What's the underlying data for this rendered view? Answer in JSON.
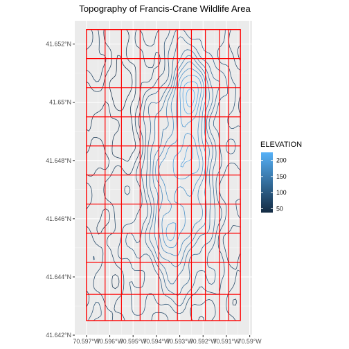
{
  "chart_data": {
    "type": "contour",
    "title": "Topography of Francis-Crane Wildlife Area",
    "xlabel": "",
    "ylabel": "",
    "x_ticks": [
      "70.597°W",
      "70.596°W",
      "70.595°W",
      "70.594°W",
      "70.593°W",
      "70.592°W",
      "70.591°W",
      "70.59°W"
    ],
    "x_tick_values": [
      -70.597,
      -70.596,
      -70.595,
      -70.594,
      -70.593,
      -70.592,
      -70.591,
      -70.59
    ],
    "y_ticks": [
      "41.652°N",
      "41.65°N",
      "41.648°N",
      "41.646°N",
      "41.644°N",
      "41.642°N"
    ],
    "y_tick_values": [
      41.652,
      41.65,
      41.648,
      41.646,
      41.644,
      41.642
    ],
    "xlim": [
      -70.5975,
      -70.5899
    ],
    "ylim": [
      41.642,
      41.6528
    ],
    "grid_extent": {
      "xmin": -70.597,
      "xmax": -70.5904,
      "ymin": 41.6425,
      "ymax": 41.6525
    },
    "red_grid_columns": [
      -70.597,
      -70.5962,
      -70.5955,
      -70.5947,
      -70.5939,
      -70.5931,
      -70.5925,
      -70.5919,
      -70.5913,
      -70.5909,
      -70.5904
    ],
    "red_grid_rows": [
      41.6425,
      41.6434,
      41.6445,
      41.6455,
      41.6465,
      41.6475,
      41.6485,
      41.6495,
      41.6505,
      41.6515,
      41.6525
    ],
    "legend": {
      "title": "ELEVATION",
      "labels": [
        "200",
        "150",
        "100",
        "50"
      ],
      "label_values": [
        200,
        150,
        100,
        50
      ],
      "range": [
        38,
        225
      ],
      "position": "right"
    },
    "colors": {
      "low": "#132b43",
      "high": "#56b1f7",
      "grid": "#ff0000",
      "panel": "#ebebeb"
    },
    "contour_levels": [
      40,
      55,
      70,
      85,
      100,
      115,
      130,
      145,
      160,
      175,
      190,
      205,
      220
    ],
    "grid_lines": true
  }
}
